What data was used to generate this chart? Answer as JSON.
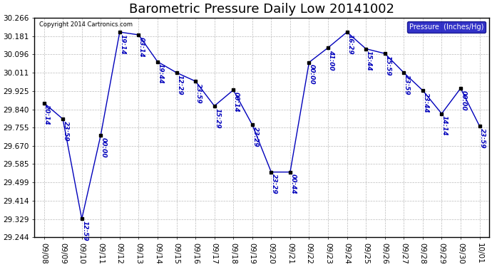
{
  "title": "Barometric Pressure Daily Low 20141002",
  "copyright": "Copyright 2014 Cartronics.com",
  "legend_label": "Pressure  (Inches/Hg)",
  "x_labels": [
    "09/08",
    "09/09",
    "09/10",
    "09/11",
    "09/12",
    "09/13",
    "09/14",
    "09/15",
    "09/16",
    "09/17",
    "09/18",
    "09/19",
    "09/20",
    "09/21",
    "09/22",
    "09/23",
    "09/24",
    "09/25",
    "09/26",
    "09/27",
    "09/28",
    "09/29",
    "09/30",
    "10/01"
  ],
  "y_values": [
    29.87,
    29.795,
    29.33,
    29.72,
    30.2,
    30.187,
    30.062,
    30.011,
    29.971,
    29.856,
    29.93,
    29.768,
    29.548,
    29.548,
    30.059,
    30.127,
    30.2,
    30.122,
    30.1,
    30.011,
    29.928,
    29.82,
    29.938,
    29.762
  ],
  "point_labels": [
    "20:14",
    "23:59",
    "12:59",
    "00:00",
    "19:14",
    "03:14",
    "19:44",
    "12:29",
    "23:59",
    "15:29",
    "00:14",
    "23:29",
    "23:29",
    "00:44",
    "00:00",
    "41:00",
    "16:29",
    "15:44",
    "15:59",
    "23:59",
    "23:44",
    "14:14",
    "00:00",
    "23:59"
  ],
  "ylim_min": 29.244,
  "ylim_max": 30.266,
  "yticks": [
    29.244,
    29.329,
    29.414,
    29.499,
    29.585,
    29.67,
    29.755,
    29.84,
    29.925,
    30.011,
    30.096,
    30.181,
    30.266
  ],
  "line_color": "#0000bb",
  "marker_color": "#000000",
  "background_color": "#ffffff",
  "grid_color": "#bbbbbb",
  "title_fontsize": 13,
  "label_fontsize": 7.5,
  "point_label_fontsize": 6.5,
  "legend_bg": "#0000bb",
  "legend_fg": "#ffffff"
}
